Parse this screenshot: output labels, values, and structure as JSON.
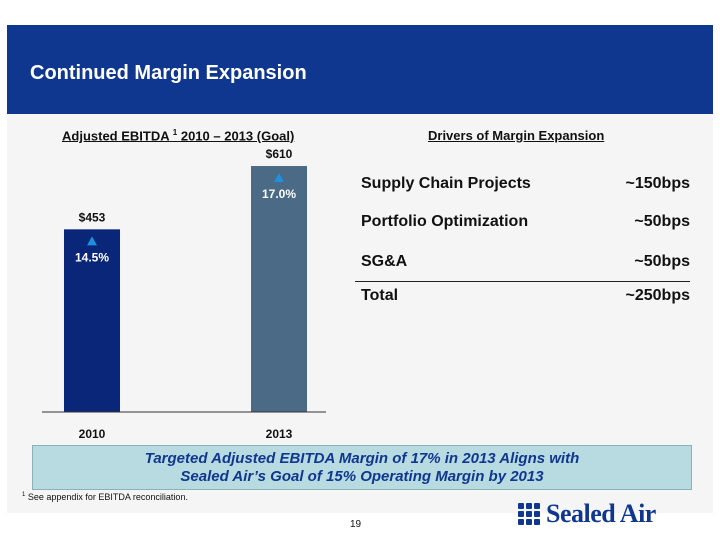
{
  "slide": {
    "title": "Continued Margin Expansion",
    "page_number": "19",
    "footnote_marker": "1",
    "footnote_text": "See appendix for EBITDA reconciliation.",
    "banner_line1": "Targeted Adjusted EBITDA Margin of 17% in 2013 Aligns with",
    "banner_line2": "Sealed Air’s Goal of 15% Operating Margin by 2013",
    "logo_text": "Sealed Air"
  },
  "chart_data": {
    "type": "bar",
    "title_pre": "Adjusted EBITDA",
    "title_sup": "1",
    "title_post": "2010 – 2013 (Goal)",
    "categories": [
      "2010",
      "2013"
    ],
    "values": [
      453,
      610
    ],
    "value_labels": [
      "$453",
      "$610"
    ],
    "margin_labels": [
      "14.5%",
      "17.0%"
    ],
    "bar_colors": [
      "#0a2678",
      "#4a6a86"
    ],
    "ylim": [
      0,
      620
    ]
  },
  "drivers": {
    "title": "Drivers of Margin Expansion",
    "rows": [
      {
        "label": "Supply Chain Projects",
        "value": "~150bps"
      },
      {
        "label": "Portfolio Optimization",
        "value": "~50bps"
      },
      {
        "label": "SG&A",
        "value": "~50bps"
      }
    ],
    "total": {
      "label": "Total",
      "value": "~250bps"
    }
  }
}
